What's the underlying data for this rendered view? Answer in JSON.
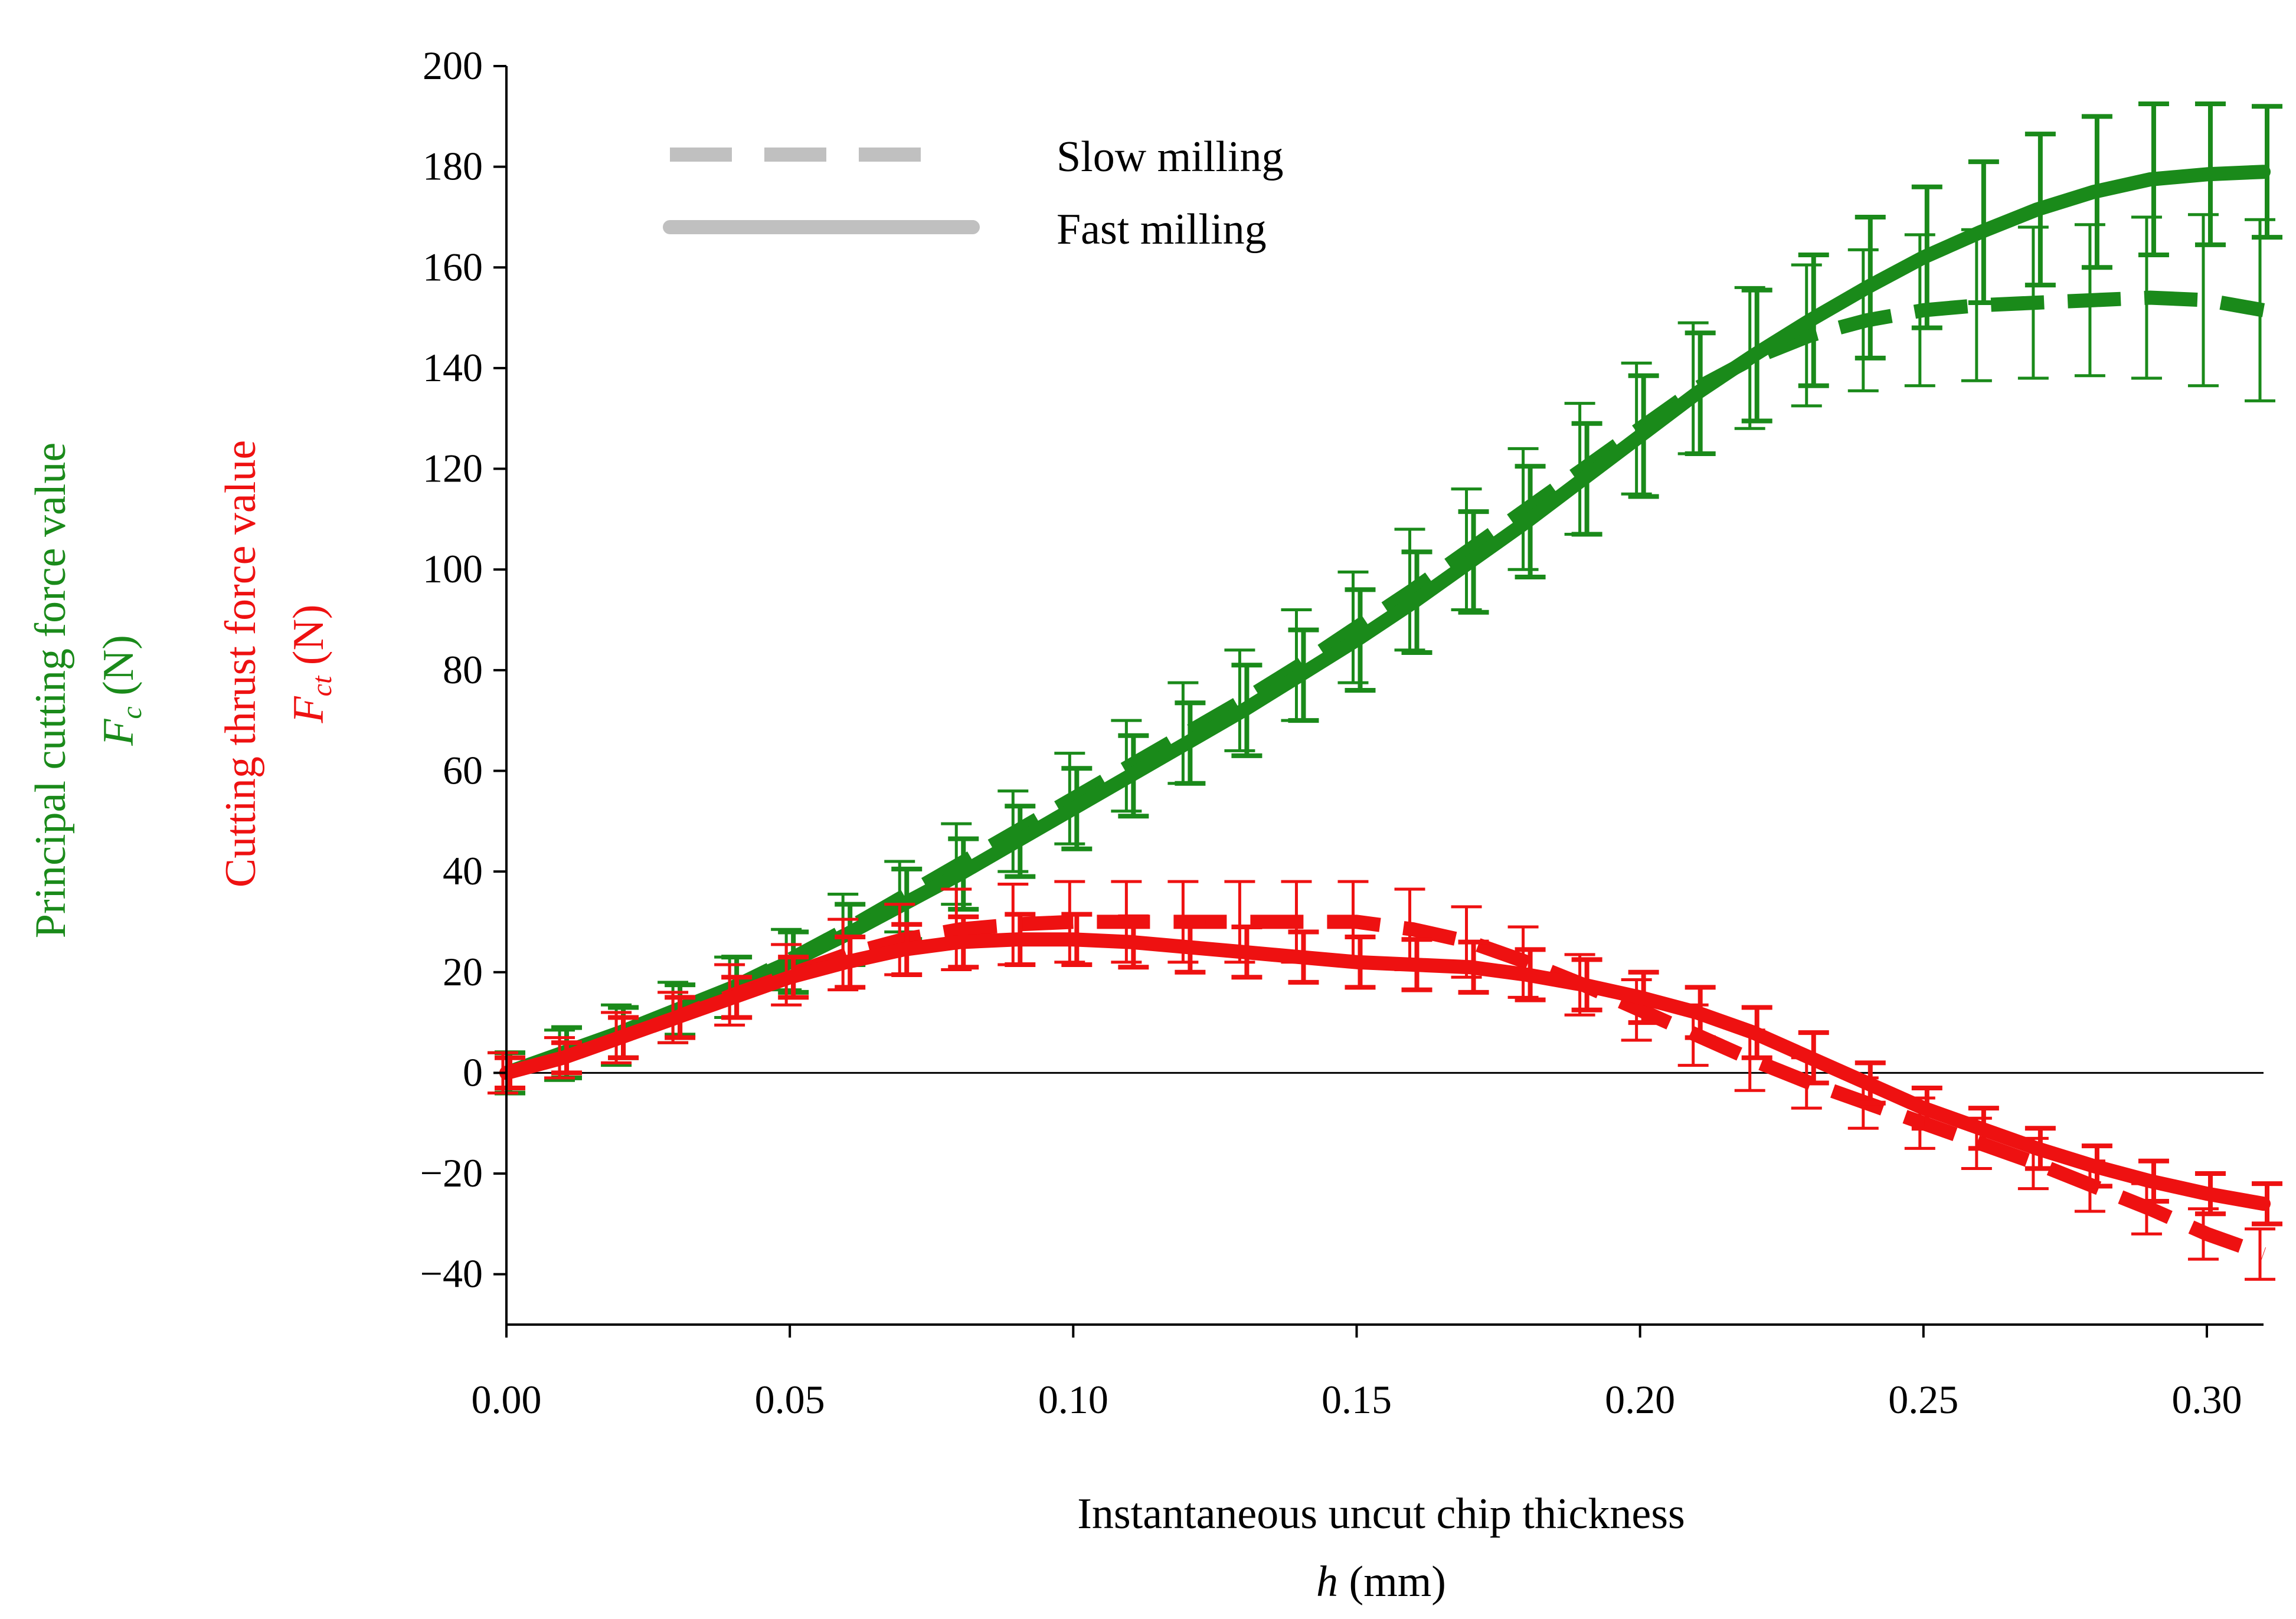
{
  "chart_data": {
    "type": "line",
    "xlabel_line1": "Instantaneous uncut chip thickness",
    "xlabel_var": "h",
    "xlabel_unit": " (mm)",
    "ylabel_fc_line1": "Principal cutting force value",
    "ylabel_fc_var": "F",
    "ylabel_fc_sub": "c",
    "ylabel_fc_unit": " (N)",
    "ylabel_fct_line1": "Cutting thrust force value",
    "ylabel_fct_var": "F",
    "ylabel_fct_sub": "ct",
    "ylabel_fct_unit": " (N)",
    "xlim": [
      0,
      0.31
    ],
    "ylim": [
      -50,
      200
    ],
    "xticks": [
      "0.00",
      "0.05",
      "0.10",
      "0.15",
      "0.20",
      "0.25",
      "0.30"
    ],
    "yticks": [
      "200",
      "180",
      "160",
      "140",
      "120",
      "100",
      "80",
      "60",
      "40",
      "20",
      "0",
      "−20",
      "−40"
    ],
    "legend": [
      {
        "label": "Slow milling",
        "style": "dashed"
      },
      {
        "label": "Fast milling",
        "style": "solid"
      }
    ],
    "colors": {
      "fc": "#1a8a1a",
      "fct": "#ee1111",
      "legend": "#c0c0c0"
    },
    "x": [
      0.0,
      0.01,
      0.02,
      0.03,
      0.04,
      0.05,
      0.06,
      0.07,
      0.08,
      0.09,
      0.1,
      0.11,
      0.12,
      0.13,
      0.14,
      0.15,
      0.16,
      0.17,
      0.18,
      0.19,
      0.2,
      0.21,
      0.22,
      0.23,
      0.24,
      0.25,
      0.26,
      0.27,
      0.28,
      0.29,
      0.3,
      0.31
    ],
    "series": [
      {
        "name": "Fc slow milling",
        "group": "fc",
        "style": "dashed",
        "values": [
          0,
          3.5,
          7.5,
          12,
          17,
          22.5,
          28.5,
          35,
          41.5,
          48,
          54.5,
          61,
          67.5,
          74,
          81,
          88.5,
          96,
          104,
          112,
          120,
          128,
          136,
          142,
          146.5,
          149.5,
          151.5,
          152.5,
          153,
          153.5,
          154,
          153.5,
          151.5
        ],
        "err": [
          4,
          5,
          6,
          6,
          6,
          6,
          7,
          7,
          8,
          8,
          9,
          9,
          10,
          10,
          11,
          11,
          12,
          12,
          12,
          13,
          13,
          13,
          14,
          14,
          14,
          15,
          15,
          15,
          15,
          16,
          17,
          18
        ]
      },
      {
        "name": "Fc fast milling",
        "group": "fc",
        "style": "solid",
        "values": [
          0,
          4,
          8,
          12.5,
          17,
          22,
          27.5,
          33.5,
          39.5,
          46,
          52.5,
          59,
          65.5,
          72,
          79,
          86,
          93.5,
          101.5,
          109.5,
          118,
          126.5,
          135,
          142.5,
          149.5,
          156,
          162,
          167,
          171.5,
          175,
          177.5,
          178.5,
          179
        ],
        "err": [
          4,
          5,
          5,
          5,
          6,
          6,
          6,
          7,
          7,
          7,
          8,
          8,
          8,
          9,
          9,
          10,
          10,
          10,
          11,
          11,
          12,
          12,
          13,
          13,
          14,
          14,
          14,
          15,
          15,
          15,
          14,
          13
        ]
      },
      {
        "name": "Fct slow milling",
        "group": "fct",
        "style": "dashed",
        "values": [
          0,
          3,
          7,
          11,
          15.5,
          19.5,
          23.5,
          26.5,
          28.5,
          29.5,
          30,
          30,
          30,
          30,
          30,
          30,
          28.5,
          26,
          22,
          17.5,
          12.5,
          7.5,
          2.5,
          -2,
          -6,
          -10,
          -14,
          -18,
          -22.5,
          -27,
          -32,
          -36
        ],
        "err": [
          4,
          4,
          5,
          5,
          6,
          6,
          7,
          7,
          8,
          8,
          8,
          8,
          8,
          8,
          8,
          8,
          8,
          7,
          7,
          6,
          6,
          6,
          6,
          5,
          5,
          5,
          5,
          5,
          5,
          5,
          5,
          5
        ]
      },
      {
        "name": "Fct fast milling",
        "group": "fct",
        "style": "solid",
        "values": [
          0,
          3,
          7,
          11,
          15,
          19,
          22,
          24.5,
          26,
          26.5,
          26.5,
          26,
          25,
          24,
          23,
          22,
          21.5,
          21,
          19.5,
          17.5,
          15,
          12,
          8,
          3,
          -2,
          -7,
          -11,
          -15,
          -18.5,
          -21.5,
          -24,
          -26
        ],
        "err": [
          3,
          3,
          4,
          4,
          4,
          4,
          5,
          5,
          5,
          5,
          5,
          5,
          5,
          5,
          5,
          5,
          5,
          5,
          5,
          5,
          5,
          5,
          5,
          5,
          4,
          4,
          4,
          4,
          4,
          4,
          4,
          4
        ]
      }
    ]
  }
}
